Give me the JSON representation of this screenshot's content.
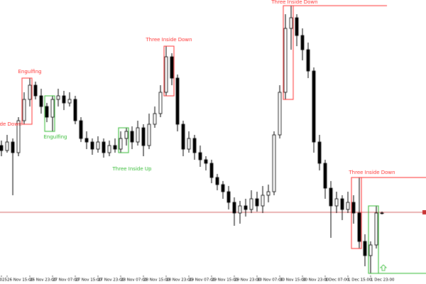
{
  "chart_data": {
    "type": "candlestick",
    "categories": [
      "025",
      "26 Nov 15:00",
      null,
      null,
      null,
      "26 Nov 23:00",
      null,
      null,
      null,
      "27 Nov 07:00",
      null,
      null,
      null,
      "27 Nov 15:00",
      null,
      null,
      null,
      "27 Nov 23:00",
      null,
      null,
      null,
      "28 Nov 07:00",
      null,
      null,
      null,
      "28 Nov 15:00",
      null,
      null,
      null,
      "28 Nov 23:00",
      null,
      null,
      null,
      "29 Nov 07:00",
      null,
      null,
      null,
      "29 Nov 15:00",
      null,
      null,
      null,
      "29 Nov 23:00",
      null,
      null,
      null,
      "30 Nov 07:00",
      null,
      null,
      null,
      "30 Nov 15:00",
      null,
      null,
      null,
      "30 Nov 23:00",
      null,
      null,
      null,
      "1 Dec 07:00",
      null,
      null,
      null,
      "1 Dec 15:00",
      null,
      null,
      null,
      "1 Dec 23:00",
      null,
      null
    ],
    "open": [
      195,
      188,
      200,
      185,
      230,
      260,
      280,
      265,
      250,
      235,
      260,
      265,
      255,
      260,
      230,
      205,
      200,
      190,
      200,
      185,
      195,
      190,
      205,
      215,
      200,
      220,
      195,
      225,
      240,
      270,
      320,
      290,
      225,
      190,
      205,
      185,
      175,
      170,
      150,
      140,
      130,
      115,
      100,
      110,
      105,
      120,
      110,
      125,
      130,
      210,
      270,
      360,
      375,
      350,
      330,
      300,
      200,
      170,
      135,
      110,
      120,
      105,
      115,
      100,
      60,
      40,
      55,
      100
    ],
    "high": [
      202,
      210,
      205,
      235,
      270,
      290,
      285,
      275,
      255,
      265,
      275,
      272,
      270,
      265,
      235,
      215,
      205,
      208,
      205,
      202,
      205,
      215,
      220,
      222,
      230,
      225,
      240,
      250,
      280,
      335,
      325,
      295,
      230,
      215,
      210,
      195,
      180,
      175,
      155,
      145,
      138,
      122,
      117,
      120,
      132,
      130,
      138,
      140,
      215,
      280,
      380,
      392,
      380,
      360,
      340,
      305,
      210,
      175,
      145,
      130,
      125,
      130,
      125,
      150,
      70,
      60,
      110,
      102
    ],
    "low": [
      180,
      185,
      125,
      180,
      225,
      250,
      260,
      240,
      228,
      215,
      250,
      245,
      250,
      225,
      200,
      190,
      182,
      185,
      178,
      180,
      185,
      185,
      195,
      190,
      195,
      180,
      190,
      220,
      235,
      265,
      280,
      215,
      180,
      185,
      175,
      165,
      160,
      142,
      132,
      120,
      105,
      82,
      85,
      95,
      100,
      102,
      100,
      115,
      125,
      205,
      260,
      330,
      335,
      315,
      290,
      185,
      160,
      120,
      65,
      100,
      90,
      100,
      85,
      50,
      25,
      15,
      50,
      98
    ],
    "close": [
      188,
      200,
      185,
      230,
      260,
      280,
      265,
      250,
      235,
      260,
      265,
      255,
      260,
      230,
      205,
      200,
      190,
      200,
      185,
      195,
      190,
      205,
      215,
      200,
      220,
      195,
      225,
      240,
      270,
      320,
      290,
      225,
      190,
      205,
      185,
      175,
      170,
      150,
      140,
      130,
      115,
      100,
      110,
      105,
      120,
      110,
      125,
      130,
      210,
      270,
      360,
      375,
      350,
      330,
      300,
      200,
      170,
      135,
      110,
      120,
      105,
      115,
      100,
      60,
      40,
      55,
      100,
      100
    ],
    "up_color": "#ffffff",
    "down_color": "#000000",
    "ylim": [
      0,
      400
    ],
    "price_line": {
      "value": 101,
      "color": "#c83232"
    },
    "annotations": [
      {
        "text": "Engulfing",
        "color": "#ff3030"
      },
      {
        "text": "Engulfing",
        "color": "#33bb33"
      },
      {
        "text": "Three Inside Up",
        "color": "#33bb33"
      },
      {
        "text": "Three Inside Down",
        "color": "#ff3030"
      },
      {
        "text": "Three Inside Down",
        "color": "#ff3030"
      },
      {
        "text": "Three Inside Down",
        "color": "#ff3030"
      },
      {
        "text": "ide Down",
        "color": "#ff3030"
      }
    ],
    "signal_color": "#33bb33"
  }
}
